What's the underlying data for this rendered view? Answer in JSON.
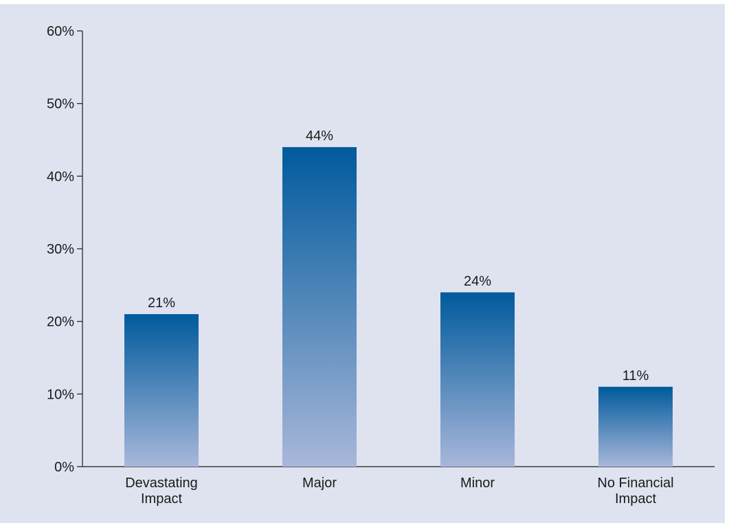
{
  "chart_data": {
    "type": "bar",
    "title": "",
    "xlabel": "",
    "ylabel": "",
    "categories": [
      [
        "Devastating",
        "Impact"
      ],
      [
        "Major"
      ],
      [
        "Minor"
      ],
      [
        "No Financial",
        "Impact"
      ]
    ],
    "values": [
      21,
      44,
      24,
      11
    ],
    "value_labels": [
      "21%",
      "44%",
      "24%",
      "11%"
    ],
    "ylim": [
      0,
      60
    ],
    "yticks": [
      0,
      10,
      20,
      30,
      40,
      50,
      60
    ],
    "ytick_labels": [
      "0%",
      "10%",
      "20%",
      "30%",
      "40%",
      "50%",
      "60%"
    ],
    "grid": false,
    "legend": "none",
    "colors": {
      "panel_background": "#dfe3f0",
      "bar_top": "#005a9c",
      "bar_bottom": "#a8b7da",
      "axis": "#1a1a1a",
      "text": "#1a1a1a"
    }
  }
}
